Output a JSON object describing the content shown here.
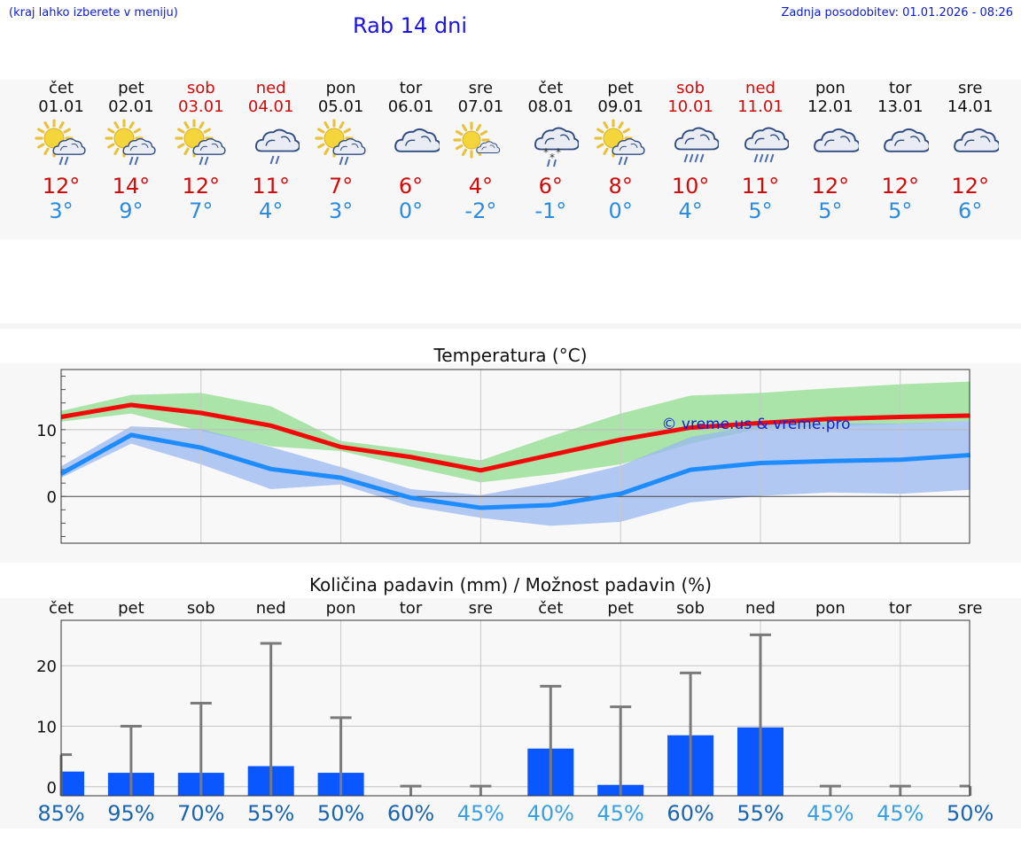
{
  "header": {
    "menu_note": "(kraj lahko izberete v meniju)",
    "title": "Rab 14 dni",
    "updated": "Zadnja posodobitev: 01.01.2026 - 08:26"
  },
  "watermark": "© vreme.us & vreme.pro",
  "colors": {
    "max": "#d10a0a",
    "min": "#2a8be0",
    "max_line": "#f00a0a",
    "min_line": "#1e8cff",
    "max_band": "#9ee09a",
    "min_band": "#9ab8f0",
    "bar": "#0b57ff"
  },
  "days": [
    {
      "name": "čet",
      "date": "01.01",
      "weekend": false,
      "icon": "sun-cloud-rain",
      "max": "12°",
      "min": "3°"
    },
    {
      "name": "pet",
      "date": "02.01",
      "weekend": false,
      "icon": "sun-cloud-rain",
      "max": "14°",
      "min": "9°"
    },
    {
      "name": "sob",
      "date": "03.01",
      "weekend": true,
      "icon": "sun-cloud-rain",
      "max": "12°",
      "min": "7°"
    },
    {
      "name": "ned",
      "date": "04.01",
      "weekend": true,
      "icon": "cloud-rain",
      "max": "11°",
      "min": "4°"
    },
    {
      "name": "pon",
      "date": "05.01",
      "weekend": false,
      "icon": "sun-cloud-rain",
      "max": "7°",
      "min": "3°"
    },
    {
      "name": "tor",
      "date": "06.01",
      "weekend": false,
      "icon": "cloud",
      "max": "6°",
      "min": "0°"
    },
    {
      "name": "sre",
      "date": "07.01",
      "weekend": false,
      "icon": "sun-small-cloud",
      "max": "4°",
      "min": "-2°"
    },
    {
      "name": "čet",
      "date": "08.01",
      "weekend": false,
      "icon": "cloud-snow",
      "max": "6°",
      "min": "-1°"
    },
    {
      "name": "pet",
      "date": "09.01",
      "weekend": false,
      "icon": "sun-cloud-rain",
      "max": "8°",
      "min": "0°"
    },
    {
      "name": "sob",
      "date": "10.01",
      "weekend": true,
      "icon": "cloud-heavy-rain",
      "max": "10°",
      "min": "4°"
    },
    {
      "name": "ned",
      "date": "11.01",
      "weekend": true,
      "icon": "cloud-heavy-rain",
      "max": "11°",
      "min": "5°"
    },
    {
      "name": "pon",
      "date": "12.01",
      "weekend": false,
      "icon": "cloud",
      "max": "12°",
      "min": "5°"
    },
    {
      "name": "tor",
      "date": "13.01",
      "weekend": false,
      "icon": "cloud",
      "max": "12°",
      "min": "5°"
    },
    {
      "name": "sre",
      "date": "14.01",
      "weekend": false,
      "icon": "cloud",
      "max": "12°",
      "min": "6°"
    }
  ],
  "chart_data": [
    {
      "type": "line",
      "title": "Temperatura (°C)",
      "ylim": [
        -7,
        19
      ],
      "yticks": [
        0,
        10
      ],
      "series": [
        {
          "name": "max",
          "values": [
            11.9,
            13.7,
            12.5,
            10.6,
            7.4,
            5.9,
            3.9,
            6.2,
            8.5,
            10.3,
            11.0,
            11.6,
            11.9,
            12.1
          ],
          "band_low": [
            11.2,
            12.4,
            9.8,
            7.5,
            6.8,
            4.4,
            2.1,
            3.3,
            4.8,
            7.9,
            10.2,
            10.5,
            10.8,
            11.3
          ],
          "band_high": [
            12.8,
            15.2,
            15.5,
            13.5,
            8.3,
            7.0,
            5.4,
            9.0,
            12.4,
            15.1,
            15.5,
            16.2,
            16.8,
            17.2
          ]
        },
        {
          "name": "min",
          "values": [
            3.4,
            9.2,
            7.3,
            4.1,
            2.8,
            -0.2,
            -1.7,
            -1.3,
            0.4,
            4.0,
            5.0,
            5.3,
            5.5,
            6.2
          ],
          "band_low": [
            2.8,
            7.9,
            4.8,
            1.1,
            1.8,
            -1.5,
            -3.2,
            -4.4,
            -3.8,
            -0.9,
            0.1,
            0.6,
            0.4,
            1.0
          ],
          "band_high": [
            4.5,
            10.5,
            10.1,
            7.4,
            4.4,
            1.1,
            0.2,
            2.1,
            4.6,
            8.9,
            10.8,
            11.0,
            10.9,
            11.3
          ]
        }
      ]
    },
    {
      "type": "bar",
      "title": "Količina padavin (mm) / Možnost padavin (%)",
      "categories": [
        "čet",
        "pet",
        "sob",
        "ned",
        "pon",
        "tor",
        "sre",
        "čet",
        "pet",
        "sob",
        "ned",
        "pon",
        "tor",
        "sre"
      ],
      "values": [
        2.5,
        2.3,
        2.3,
        3.4,
        2.3,
        0,
        0,
        6.3,
        0.3,
        8.5,
        9.8,
        0,
        0,
        0
      ],
      "error_max": [
        5.3,
        10.0,
        13.8,
        23.7,
        11.4,
        0.1,
        0.1,
        16.6,
        13.2,
        18.8,
        25.1,
        0.1,
        0.1,
        0.1
      ],
      "ylim": [
        -1.5,
        27.5
      ],
      "yticks": [
        0,
        10,
        20
      ],
      "probabilities": [
        "85%",
        "95%",
        "70%",
        "55%",
        "50%",
        "60%",
        "45%",
        "40%",
        "45%",
        "60%",
        "55%",
        "45%",
        "45%",
        "50%"
      ],
      "probability_colors": [
        "#1a64b0",
        "#1a64b0",
        "#1a64b0",
        "#1a64b0",
        "#1a64b0",
        "#1a64b0",
        "#3aa0e0",
        "#3aa0e0",
        "#3aa0e0",
        "#1a64b0",
        "#1a64b0",
        "#3aa0e0",
        "#3aa0e0",
        "#1a64b0"
      ]
    }
  ]
}
